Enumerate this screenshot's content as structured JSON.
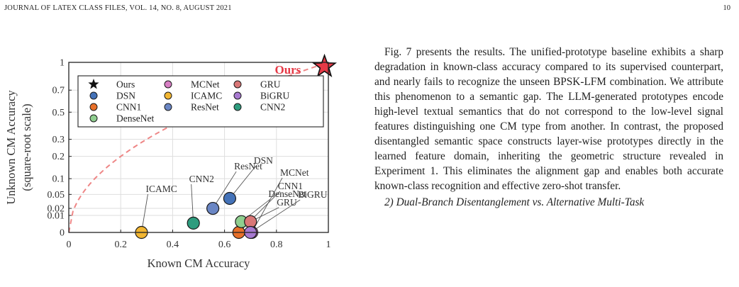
{
  "header": {
    "running_head": "JOURNAL OF LATEX CLASS FILES, VOL. 14, NO. 8, AUGUST 2021",
    "page_number": "10"
  },
  "body": {
    "paragraph": "Fig. 7 presents the results. The unified-prototype baseline exhibits a sharp degradation in known-class accuracy compared to its supervised counterpart, and nearly fails to recognize the unseen BPSK-LFM combination. We attribute this phenomenon to a semantic gap. The LLM-generated prototypes encode high-level textual semantics that do not correspond to the low-level signal features distinguishing one CM type from another. In contrast, the proposed disentangled semantic space constructs layer-wise prototypes directly in the learned feature domain, inheriting the geometric structure revealed in Experiment 1. This eliminates the alignment gap and enables both accurate known-class recognition and effective zero-shot transfer.",
    "subsection_title": "2) Dual-Branch Disentanglement vs. Alternative Multi-Task"
  },
  "chart_data": {
    "type": "scatter",
    "xlabel": "Known CM Accuracy",
    "ylabel_line1": "Unknown CM Accuracy",
    "ylabel_line2": "(square-root scale)",
    "xlim": [
      0,
      1
    ],
    "ylim": [
      0,
      1
    ],
    "y_scale": "square-root",
    "x_ticks": [
      0,
      0.2,
      0.4,
      0.6,
      0.8,
      1
    ],
    "x_tick_labels": [
      "0",
      "0.2",
      "0.4",
      "0.6",
      "0.8",
      "1"
    ],
    "y_ticks": [
      0,
      0.01,
      0.02,
      0.05,
      0.1,
      0.2,
      0.3,
      0.5,
      0.7,
      1
    ],
    "y_tick_labels": [
      "0",
      "0.01",
      "0.02",
      "0.05",
      "0.1",
      "0.2",
      "0.3",
      "0.5",
      "0.7",
      "1"
    ],
    "grid": true,
    "legend_position": "top-left",
    "diagonal_reference": true,
    "points": [
      {
        "name": "Ours",
        "x": 0.985,
        "y": 0.95,
        "color": "#e63946",
        "marker": "star",
        "label": "Ours"
      },
      {
        "name": "DSN",
        "x": 0.62,
        "y": 0.04,
        "color": "#4472b8",
        "marker": "circle",
        "label": "DSN"
      },
      {
        "name": "CNN1",
        "x": 0.655,
        "y": 0.0,
        "color": "#e8702a",
        "marker": "circle",
        "label": "CNN1"
      },
      {
        "name": "CNN2",
        "x": 0.48,
        "y": 0.003,
        "color": "#2e9c7e",
        "marker": "circle",
        "label": "CNN2"
      },
      {
        "name": "MCNet",
        "x": 0.705,
        "y": 0.0,
        "color": "#d77fc4",
        "marker": "circle",
        "label": "MCNet"
      },
      {
        "name": "ICAMC",
        "x": 0.28,
        "y": 0.0,
        "color": "#f2b632",
        "marker": "circle",
        "label": "ICAMC"
      },
      {
        "name": "ResNet",
        "x": 0.555,
        "y": 0.02,
        "color": "#6a86c4",
        "marker": "circle",
        "label": "ResNet"
      },
      {
        "name": "DenseNet",
        "x": 0.665,
        "y": 0.004,
        "color": "#8fce8f",
        "marker": "circle",
        "label": "DenseNet"
      },
      {
        "name": "GRU",
        "x": 0.7,
        "y": 0.004,
        "color": "#d97777",
        "marker": "circle",
        "label": "GRU"
      },
      {
        "name": "BiGRU",
        "x": 0.7,
        "y": 0.0,
        "color": "#a87ad1",
        "marker": "circle",
        "label": "BiGRU"
      }
    ],
    "legend": [
      {
        "name": "Ours",
        "color": "#111111",
        "marker": "star"
      },
      {
        "name": "MCNet",
        "color": "#d77fc4",
        "marker": "circle"
      },
      {
        "name": "GRU",
        "color": "#d97777",
        "marker": "circle"
      },
      {
        "name": "DSN",
        "color": "#4472b8",
        "marker": "circle"
      },
      {
        "name": "ICAMC",
        "color": "#f2b632",
        "marker": "circle"
      },
      {
        "name": "BiGRU",
        "color": "#a87ad1",
        "marker": "circle"
      },
      {
        "name": "CNN1",
        "color": "#e8702a",
        "marker": "circle"
      },
      {
        "name": "ResNet",
        "color": "#6a86c4",
        "marker": "circle"
      },
      {
        "name": "CNN2",
        "color": "#2e9c7e",
        "marker": "circle"
      },
      {
        "name": "DenseNet",
        "color": "#8fce8f",
        "marker": "circle"
      }
    ]
  }
}
